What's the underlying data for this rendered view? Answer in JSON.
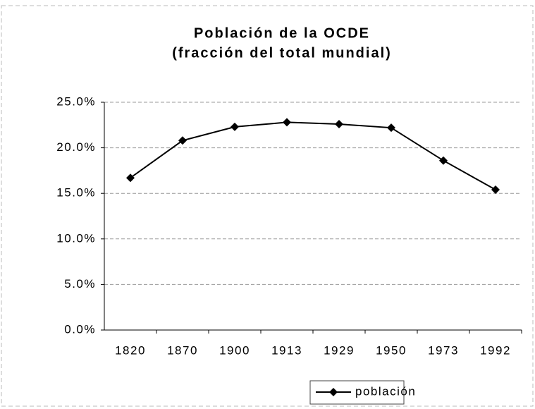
{
  "chart_data": {
    "type": "line",
    "title": "Población de la OCDE",
    "subtitle": "(fracción del total mundial)",
    "categories": [
      "1820",
      "1870",
      "1900",
      "1913",
      "1929",
      "1950",
      "1973",
      "1992"
    ],
    "series": [
      {
        "name": "población",
        "color": "#000000",
        "values": [
          16.7,
          20.8,
          22.3,
          22.8,
          22.6,
          22.2,
          18.6,
          15.4
        ]
      }
    ],
    "ylim": [
      0,
      25
    ],
    "yticks": [
      {
        "value": 0,
        "label": "0.0%"
      },
      {
        "value": 5,
        "label": "5.0%"
      },
      {
        "value": 10,
        "label": "10.0%"
      },
      {
        "value": 15,
        "label": "15.0%"
      },
      {
        "value": 20,
        "label": "20.0%"
      },
      {
        "value": 25,
        "label": "25.0%"
      }
    ],
    "grid": true
  }
}
